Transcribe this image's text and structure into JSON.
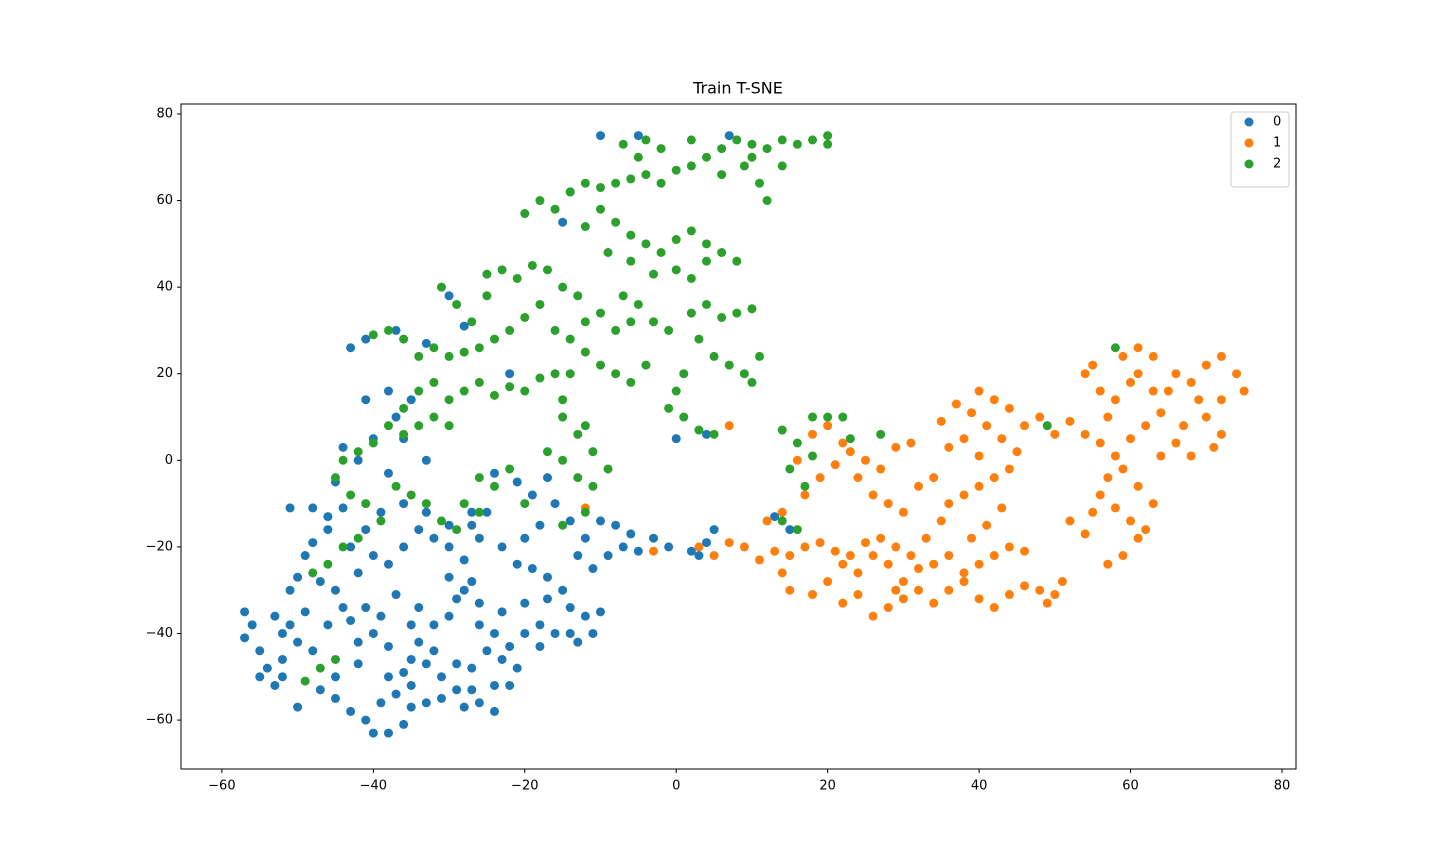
{
  "chart_data": {
    "type": "scatter",
    "title": "Train T-SNE",
    "legend": "upper right",
    "xlim": [
      -65.4,
      81.85
    ],
    "ylim": [
      -71.3,
      82.3
    ],
    "xticks": [
      {
        "value": -60,
        "label": "−60"
      },
      {
        "value": -40,
        "label": "−40"
      },
      {
        "value": -20,
        "label": "−20"
      },
      0,
      20,
      40,
      60,
      80
    ],
    "yticks": [
      {
        "value": -60,
        "label": "−60"
      },
      {
        "value": -40,
        "label": "−40"
      },
      {
        "value": -20,
        "label": "−20"
      },
      0,
      20,
      40,
      60,
      80
    ],
    "series": [
      {
        "name": "0",
        "color": "#1f77b4",
        "x": [
          -57,
          -56,
          -57,
          -55,
          -54,
          -55,
          -53,
          -52,
          -53,
          -51,
          -50,
          -52,
          -49,
          -51,
          -50,
          -49,
          -48,
          -51,
          -48,
          -46,
          -44,
          -46,
          -47,
          -45,
          -44,
          -46,
          -48,
          -47,
          -45,
          -43,
          -41,
          -40,
          -38,
          -36,
          -39,
          -37,
          -35,
          -33,
          -31,
          -29,
          -28,
          -26,
          -24,
          -22,
          -21,
          -23,
          -25,
          -27,
          -29,
          -31,
          -33,
          -35,
          -36,
          -38,
          -40,
          -42,
          -43,
          -41,
          -39,
          -37,
          -35,
          -34,
          -32,
          -30,
          -29,
          -30,
          -28,
          -26,
          -27,
          -28,
          -30,
          -32,
          -34,
          -36,
          -38,
          -40,
          -42,
          -43,
          -41,
          -39,
          -36,
          -33,
          -30,
          -27,
          -25,
          -26,
          -23,
          -21,
          -19,
          -17,
          -15,
          -14,
          -12,
          -11,
          -13,
          -16,
          -18,
          -20,
          -22,
          -24,
          -20,
          -17,
          -18,
          -19,
          -17,
          -16,
          -14,
          -12,
          -13,
          -11,
          -9,
          -7,
          -5,
          -3,
          -1,
          -8,
          -6,
          -10,
          2,
          4,
          3,
          5,
          -21,
          -24,
          -40,
          -42,
          -38,
          -37,
          -35,
          -38,
          -41,
          -43,
          -41,
          -37,
          -33,
          -30,
          -28,
          -36,
          -33,
          -27,
          -45,
          -44,
          -22,
          -15,
          -14,
          -10,
          -5,
          7,
          0,
          4,
          13,
          15,
          -20,
          -35,
          -45,
          -50,
          -52,
          -42,
          -38,
          -34,
          -32,
          -24,
          -27,
          -26,
          -23,
          -18,
          -14,
          -10
        ],
        "values": [
          -35,
          -38,
          -41,
          -44,
          -48,
          -50,
          -52,
          -46,
          -36,
          -38,
          -42,
          -40,
          -35,
          -30,
          -27,
          -22,
          -19,
          -11,
          -11,
          -13,
          -11,
          -16,
          -28,
          -30,
          -34,
          -38,
          -44,
          -53,
          -55,
          -58,
          -60,
          -63,
          -63,
          -61,
          -56,
          -54,
          -57,
          -56,
          -55,
          -53,
          -57,
          -56,
          -58,
          -52,
          -48,
          -46,
          -44,
          -48,
          -47,
          -50,
          -47,
          -46,
          -49,
          -43,
          -40,
          -42,
          -37,
          -34,
          -36,
          -31,
          -38,
          -34,
          -38,
          -36,
          -32,
          -27,
          -30,
          -33,
          -28,
          -23,
          -20,
          -18,
          -16,
          -20,
          -24,
          -22,
          -26,
          -20,
          -16,
          -12,
          -10,
          -12,
          -15,
          -15,
          -12,
          -18,
          -20,
          -24,
          -25,
          -27,
          -30,
          -34,
          -36,
          -40,
          -42,
          -40,
          -38,
          -40,
          -43,
          -40,
          -33,
          -32,
          -15,
          -8,
          -4,
          -10,
          -14,
          -18,
          -22,
          -25,
          -22,
          -20,
          -21,
          -18,
          -20,
          -15,
          -17,
          -14,
          -21,
          -19,
          -22,
          -16,
          -5,
          -3,
          5,
          0,
          -3,
          10,
          14,
          16,
          14,
          26,
          28,
          30,
          27,
          38,
          31,
          5,
          0,
          -12,
          -5,
          3,
          20,
          55,
          62,
          75,
          75,
          75,
          5,
          6,
          -13,
          -16,
          -18,
          -52,
          -50,
          -57,
          -50,
          -47,
          -50,
          -42,
          -44,
          -52,
          -53,
          -38,
          -35,
          -43,
          -40,
          -35
        ]
      },
      {
        "name": "1",
        "color": "#ff7f0e",
        "x": [
          3,
          5,
          7,
          9,
          11,
          13,
          15,
          17,
          19,
          21,
          23,
          25,
          27,
          29,
          31,
          33,
          35,
          36,
          38,
          40,
          42,
          44,
          45,
          43,
          41,
          39,
          37,
          35,
          38,
          40,
          36,
          42,
          40,
          44,
          46,
          48,
          50,
          52,
          54,
          56,
          58,
          57,
          56,
          58,
          60,
          61,
          59,
          57,
          54,
          52,
          55,
          62,
          63,
          61,
          59,
          60,
          62,
          64,
          63,
          61,
          59,
          61,
          63,
          60,
          58,
          56,
          57,
          55,
          54,
          66,
          68,
          70,
          72,
          74,
          75,
          72,
          70,
          72,
          71,
          68,
          66,
          67,
          69,
          65,
          64,
          12,
          14,
          17,
          19,
          21,
          23,
          25,
          27,
          29,
          31,
          16,
          18,
          20,
          22,
          24,
          26,
          28,
          30,
          32,
          34,
          20,
          18,
          15,
          14,
          22,
          24,
          26,
          28,
          30,
          32,
          34,
          36,
          38,
          40,
          42,
          44,
          46,
          48,
          50,
          51,
          49,
          38,
          40,
          42,
          44,
          46,
          36,
          34,
          32,
          30,
          28,
          26,
          24,
          22,
          -3,
          7,
          -12,
          29,
          41,
          43,
          39
        ],
        "values": [
          -20,
          -22,
          -19,
          -20,
          -23,
          -21,
          -22,
          -20,
          -19,
          -21,
          -22,
          -19,
          -18,
          -20,
          -22,
          -18,
          -14,
          -10,
          -8,
          -6,
          -4,
          -2,
          2,
          5,
          8,
          11,
          13,
          9,
          5,
          1,
          3,
          14,
          16,
          12,
          8,
          10,
          6,
          9,
          6,
          4,
          1,
          -4,
          -8,
          -11,
          -14,
          -18,
          -22,
          -24,
          -17,
          -14,
          -12,
          -16,
          -10,
          -6,
          -2,
          5,
          8,
          11,
          16,
          20,
          24,
          26,
          24,
          18,
          14,
          16,
          10,
          22,
          20,
          20,
          18,
          22,
          24,
          20,
          16,
          14,
          10,
          6,
          3,
          1,
          4,
          8,
          14,
          16,
          1,
          -14,
          -12,
          -8,
          -4,
          -1,
          2,
          0,
          -2,
          3,
          4,
          0,
          6,
          8,
          4,
          -4,
          -8,
          -10,
          -12,
          -6,
          -4,
          -28,
          -31,
          -30,
          -26,
          -33,
          -31,
          -36,
          -34,
          -32,
          -30,
          -33,
          -30,
          -28,
          -32,
          -34,
          -31,
          -29,
          -30,
          -31,
          -28,
          -33,
          -26,
          -24,
          -22,
          -20,
          -21,
          -22,
          -24,
          -25,
          -28,
          -24,
          -22,
          -26,
          -24,
          -21,
          8,
          -11,
          -30,
          -15,
          -11,
          -18
        ]
      },
      {
        "name": "2",
        "color": "#2ca02c",
        "x": [
          -20,
          -18,
          -16,
          -14,
          -12,
          -10,
          -8,
          -6,
          -4,
          -2,
          0,
          2,
          4,
          6,
          8,
          10,
          12,
          14,
          16,
          18,
          20,
          20,
          -5,
          -7,
          -4,
          -2,
          2,
          6,
          9,
          11,
          12,
          10,
          14,
          -8,
          -6,
          -4,
          -2,
          0,
          2,
          4,
          6,
          8,
          4,
          -6,
          -3,
          0,
          2,
          -10,
          -12,
          -9,
          -7,
          -5,
          -3,
          -1,
          -6,
          -8,
          2,
          4,
          6,
          8,
          10,
          3,
          5,
          7,
          9,
          11,
          10,
          1,
          0,
          -1,
          1,
          3,
          5,
          -25,
          -23,
          -21,
          -19,
          -17,
          -15,
          -13,
          -18,
          -20,
          -22,
          -24,
          -26,
          -28,
          -30,
          -32,
          -34,
          -36,
          -38,
          -40,
          -31,
          -29,
          -27,
          -25,
          -16,
          -14,
          -12,
          -10,
          -12,
          -10,
          -8,
          -6,
          -4,
          -14,
          -16,
          -18,
          -20,
          -22,
          -24,
          -26,
          -28,
          -30,
          -32,
          -34,
          -36,
          -38,
          -40,
          -42,
          -44,
          -45,
          -43,
          -41,
          -39,
          -37,
          -35,
          -33,
          -31,
          -29,
          -42,
          -44,
          -46,
          -48,
          -15,
          -13,
          -11,
          -9,
          -11,
          -13,
          -15,
          -17,
          -15,
          -12,
          -26,
          -24,
          -22,
          -28,
          -26,
          -20,
          -15,
          -45,
          -47,
          -49,
          -30,
          -32,
          -34,
          -36,
          14,
          16,
          18,
          15,
          17,
          20,
          22,
          23,
          27,
          18,
          49,
          58,
          14,
          16,
          -12
        ],
        "values": [
          57,
          60,
          58,
          62,
          64,
          63,
          64,
          65,
          66,
          64,
          67,
          68,
          70,
          72,
          74,
          73,
          72,
          74,
          73,
          74,
          75,
          73,
          70,
          73,
          74,
          72,
          74,
          66,
          68,
          64,
          60,
          70,
          68,
          55,
          52,
          50,
          48,
          51,
          53,
          50,
          48,
          46,
          46,
          46,
          43,
          44,
          42,
          58,
          54,
          48,
          38,
          36,
          32,
          30,
          32,
          30,
          34,
          36,
          33,
          34,
          35,
          28,
          24,
          22,
          20,
          24,
          18,
          20,
          16,
          12,
          10,
          7,
          6,
          43,
          44,
          42,
          45,
          44,
          40,
          38,
          36,
          33,
          30,
          28,
          26,
          25,
          24,
          26,
          24,
          28,
          30,
          29,
          40,
          36,
          32,
          38,
          30,
          28,
          32,
          34,
          25,
          22,
          20,
          18,
          22,
          20,
          20,
          19,
          16,
          17,
          15,
          18,
          16,
          14,
          18,
          16,
          12,
          8,
          4,
          2,
          0,
          -4,
          -8,
          -10,
          -14,
          -6,
          -8,
          -10,
          -14,
          -16,
          -18,
          -20,
          -24,
          -26,
          10,
          6,
          2,
          -2,
          -6,
          -4,
          0,
          2,
          14,
          8,
          -4,
          -6,
          -2,
          -10,
          -12,
          -10,
          -15,
          -46,
          -48,
          -51,
          8,
          10,
          8,
          6,
          7,
          4,
          1,
          -2,
          -6,
          10,
          10,
          5,
          6,
          10,
          8,
          26,
          -14,
          -16,
          -12
        ]
      }
    ]
  }
}
